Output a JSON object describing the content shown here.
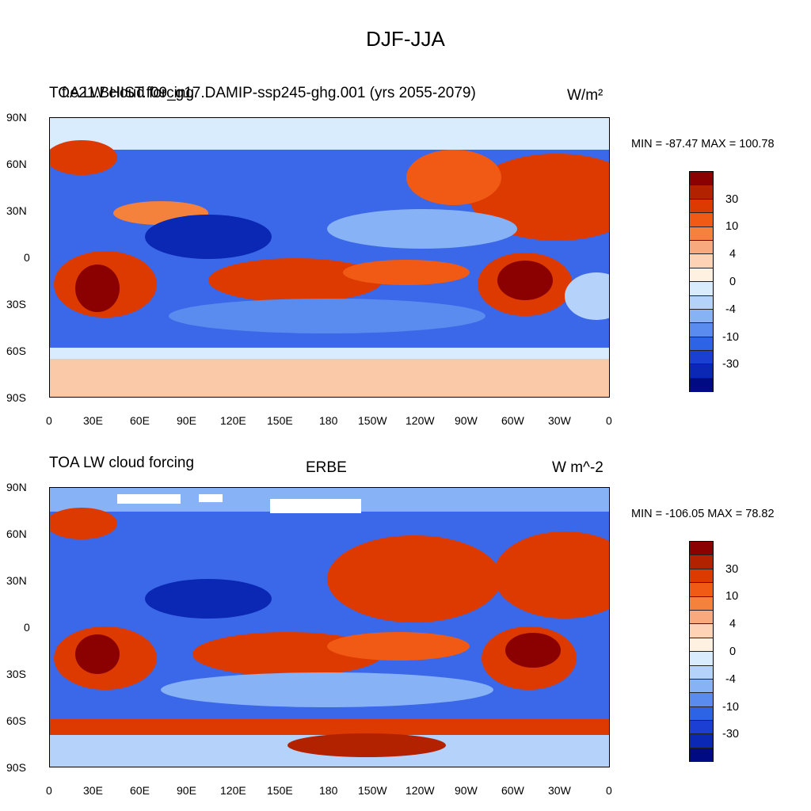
{
  "figure": {
    "title": "DJF-JJA"
  },
  "panels": [
    {
      "left_title": "TOA LW cloud forcing",
      "center_title": "f.e21.BHIST.f09_g17.DAMIP-ssp245-ghg.001 (yrs 2055-2079)",
      "right_title": "W/m²",
      "minmax": "MIN = -87.47 MAX = 100.78",
      "y_ticks": [
        "90N",
        "60N",
        "30N",
        "0",
        "30S",
        "60S",
        "90S"
      ],
      "x_ticks": [
        "0",
        "30E",
        "60E",
        "90E",
        "120E",
        "150E",
        "180",
        "150W",
        "120W",
        "90W",
        "60W",
        "30W",
        "0"
      ],
      "colorbar_labels": [
        "30",
        "10",
        "4",
        "0",
        "-4",
        "-10",
        "-30"
      ]
    },
    {
      "left_title": "TOA LW cloud forcing",
      "center_title": "ERBE",
      "right_title": "W m^-2",
      "minmax": "MIN = -106.05 MAX =  78.82",
      "y_ticks": [
        "90N",
        "60N",
        "30N",
        "0",
        "30S",
        "60S",
        "90S"
      ],
      "x_ticks": [
        "0",
        "30E",
        "60E",
        "90E",
        "120E",
        "150E",
        "180",
        "150W",
        "120W",
        "90W",
        "60W",
        "30W",
        "0"
      ],
      "colorbar_labels": [
        "30",
        "10",
        "4",
        "0",
        "-4",
        "-10",
        "-30"
      ]
    }
  ],
  "colors": {
    "scale": [
      "#8b0000",
      "#b22200",
      "#dc3a00",
      "#f05a14",
      "#f5823c",
      "#f9a97e",
      "#fdd2b5",
      "#fff1e1",
      "#d9ecfe",
      "#b4d2fa",
      "#87b2f5",
      "#5a8cf0",
      "#2d64e6",
      "#1a3fd2",
      "#0a28b4",
      "#000a82"
    ],
    "map_background": "#a8c8f4"
  }
}
